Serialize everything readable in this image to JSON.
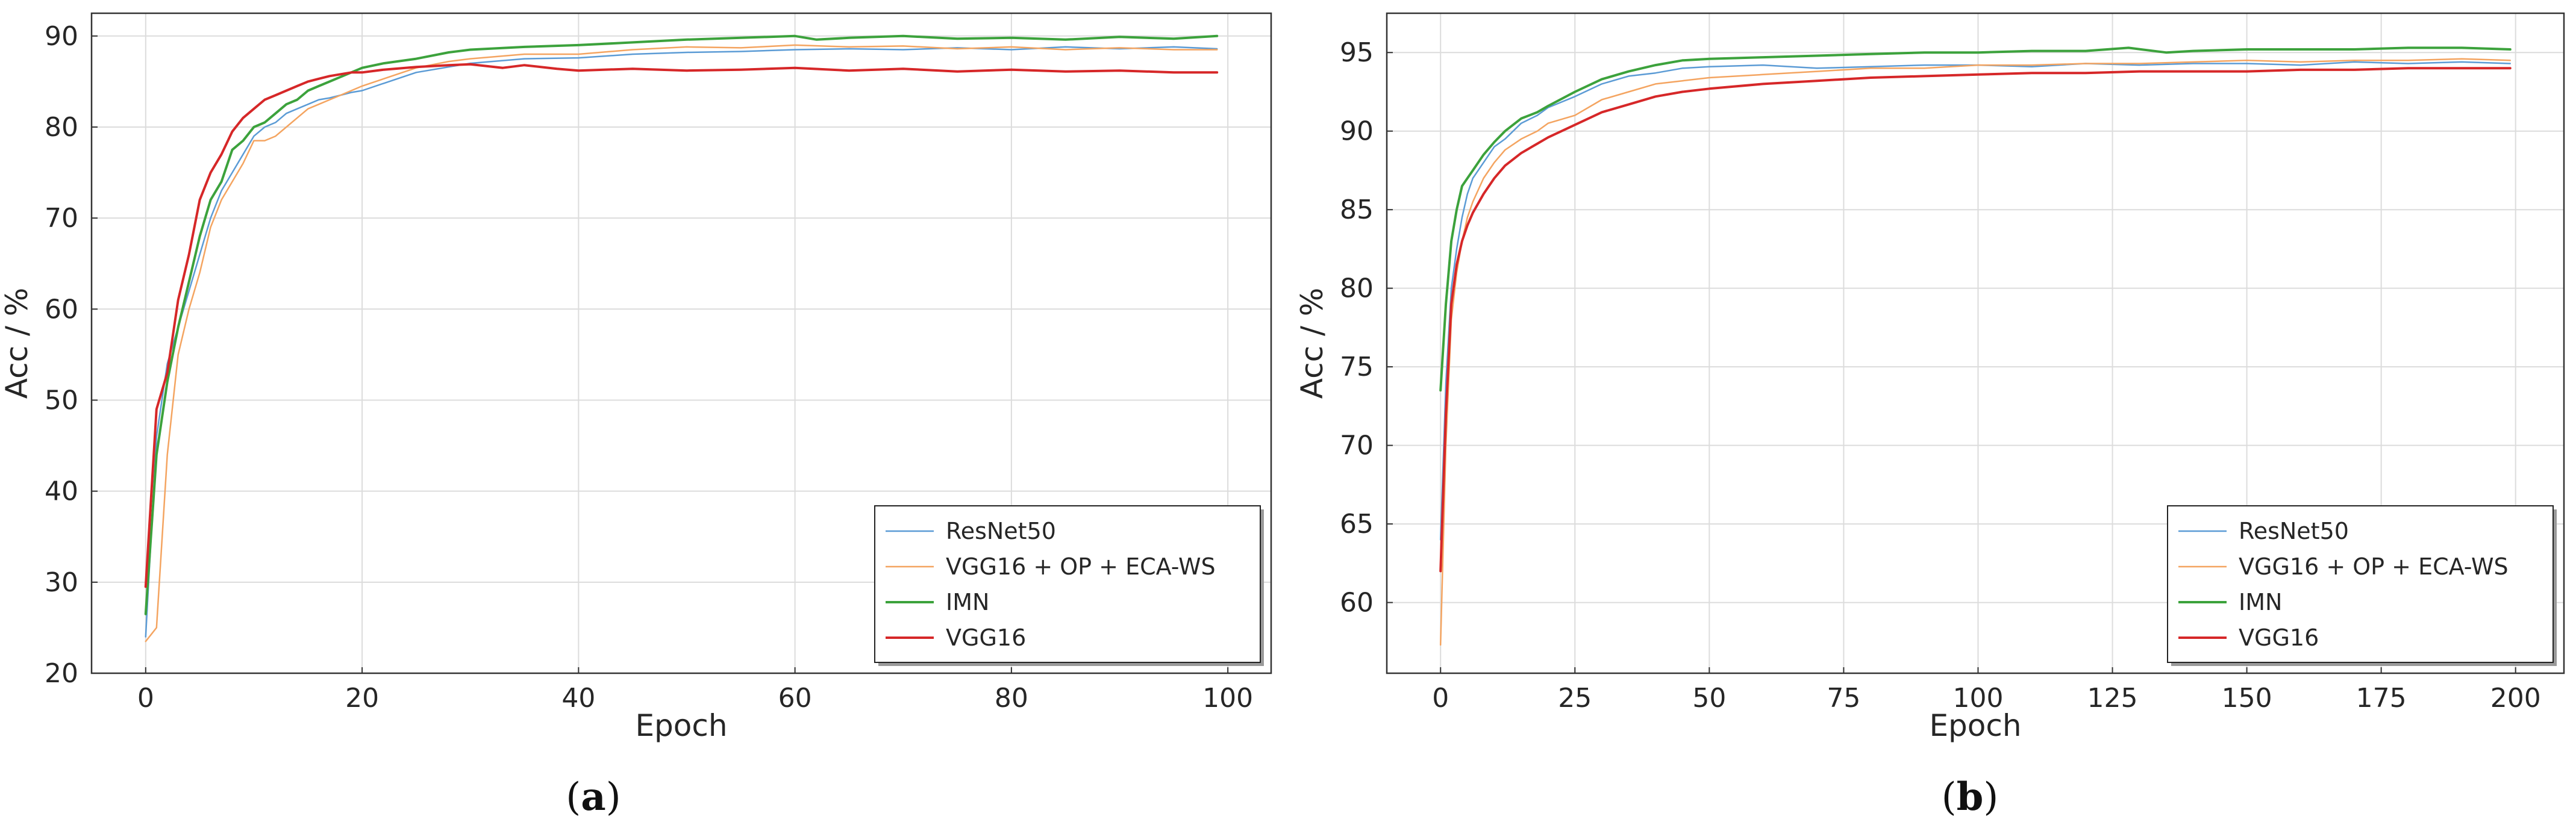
{
  "chart_data": [
    {
      "type": "line",
      "caption_open": "(",
      "caption_letter": "a",
      "caption_close": ")",
      "title": "",
      "xlabel": "Epoch",
      "ylabel": "Acc / %",
      "xlim": [
        -5,
        104
      ],
      "ylim": [
        20,
        92.5
      ],
      "xticks": [
        0,
        20,
        40,
        60,
        80,
        100
      ],
      "yticks": [
        20,
        30,
        40,
        50,
        60,
        70,
        80,
        90
      ],
      "grid": true,
      "legend_position": "lower-right",
      "series": [
        {
          "name": "ResNet50",
          "color": "#5b9bd5",
          "width": 2.5,
          "x": [
            0,
            1,
            2,
            3,
            4,
            5,
            6,
            7,
            8,
            9,
            10,
            11,
            12,
            13,
            14,
            15,
            16,
            17,
            18,
            19,
            20,
            22,
            25,
            28,
            30,
            35,
            40,
            45,
            50,
            55,
            60,
            65,
            70,
            75,
            80,
            85,
            90,
            95,
            99
          ],
          "y": [
            24,
            46,
            54,
            58,
            62,
            66,
            70,
            73,
            75,
            77,
            79,
            80,
            80.5,
            81.5,
            82,
            82.5,
            83,
            83.2,
            83.5,
            83.8,
            84,
            84.8,
            86,
            86.6,
            87,
            87.5,
            87.6,
            88,
            88.2,
            88.3,
            88.5,
            88.6,
            88.5,
            88.7,
            88.5,
            88.8,
            88.6,
            88.8,
            88.6
          ]
        },
        {
          "name": "VGG16 + OP + ECA-WS",
          "color": "#f4a460",
          "width": 2.5,
          "x": [
            0,
            1,
            2,
            3,
            4,
            5,
            6,
            7,
            8,
            9,
            10,
            11,
            12,
            13,
            14,
            15,
            16,
            17,
            18,
            19,
            20,
            22,
            25,
            28,
            30,
            35,
            40,
            45,
            50,
            55,
            60,
            65,
            70,
            75,
            80,
            85,
            90,
            95,
            99
          ],
          "y": [
            23.5,
            25,
            44,
            55,
            60,
            64,
            69,
            72,
            74,
            76,
            78.5,
            78.5,
            79,
            80,
            81,
            82,
            82.5,
            83,
            83.5,
            84,
            84.5,
            85.3,
            86.5,
            87.2,
            87.5,
            88,
            88,
            88.5,
            88.8,
            88.7,
            89,
            88.8,
            88.9,
            88.6,
            88.8,
            88.5,
            88.7,
            88.5,
            88.5
          ]
        },
        {
          "name": "IMN",
          "color": "#3ca23c",
          "width": 4,
          "x": [
            0,
            1,
            2,
            3,
            4,
            5,
            6,
            7,
            8,
            9,
            10,
            11,
            12,
            13,
            14,
            15,
            16,
            17,
            18,
            19,
            20,
            22,
            25,
            28,
            30,
            35,
            40,
            45,
            50,
            55,
            60,
            62,
            65,
            70,
            75,
            80,
            85,
            90,
            95,
            99
          ],
          "y": [
            26.5,
            44,
            52,
            58,
            63,
            68,
            72,
            74,
            77.5,
            78.5,
            80,
            80.5,
            81.5,
            82.5,
            83,
            84,
            84.5,
            85,
            85.5,
            86,
            86.5,
            87,
            87.5,
            88.2,
            88.5,
            88.8,
            89,
            89.3,
            89.6,
            89.8,
            90,
            89.6,
            89.8,
            90,
            89.7,
            89.8,
            89.6,
            89.9,
            89.7,
            90
          ]
        },
        {
          "name": "VGG16",
          "color": "#d62728",
          "width": 4,
          "x": [
            0,
            1,
            2,
            3,
            4,
            5,
            6,
            7,
            8,
            9,
            10,
            11,
            12,
            13,
            14,
            15,
            16,
            17,
            18,
            19,
            20,
            22,
            25,
            28,
            30,
            33,
            35,
            38,
            40,
            45,
            50,
            55,
            60,
            65,
            70,
            75,
            80,
            85,
            90,
            95,
            99
          ],
          "y": [
            29.5,
            49,
            53,
            61,
            66,
            72,
            75,
            77,
            79.5,
            81,
            82,
            83,
            83.5,
            84,
            84.5,
            85,
            85.3,
            85.6,
            85.8,
            86,
            86,
            86.3,
            86.6,
            86.8,
            86.9,
            86.5,
            86.8,
            86.4,
            86.2,
            86.4,
            86.2,
            86.3,
            86.5,
            86.2,
            86.4,
            86.1,
            86.3,
            86.1,
            86.2,
            86,
            86
          ]
        }
      ]
    },
    {
      "type": "line",
      "caption_open": "(",
      "caption_letter": "b",
      "caption_close": ")",
      "title": "",
      "xlabel": "Epoch",
      "ylabel": "Acc / %",
      "xlim": [
        -10,
        209
      ],
      "ylim": [
        55.5,
        97.5
      ],
      "xticks": [
        0,
        25,
        50,
        75,
        100,
        125,
        150,
        175,
        200
      ],
      "yticks": [
        60,
        65,
        70,
        75,
        80,
        85,
        90,
        95
      ],
      "grid": true,
      "legend_position": "lower-right",
      "series": [
        {
          "name": "ResNet50",
          "color": "#5b9bd5",
          "width": 2.5,
          "x": [
            0,
            1,
            2,
            3,
            4,
            5,
            6,
            8,
            10,
            12,
            15,
            18,
            20,
            25,
            30,
            35,
            40,
            45,
            50,
            60,
            70,
            80,
            90,
            100,
            110,
            120,
            130,
            140,
            150,
            160,
            170,
            180,
            190,
            199
          ],
          "y": [
            64,
            74,
            80,
            82.5,
            84.5,
            86,
            87,
            88,
            89,
            89.5,
            90.5,
            91,
            91.5,
            92.2,
            93,
            93.5,
            93.7,
            94,
            94.1,
            94.2,
            94,
            94.1,
            94.2,
            94.2,
            94.1,
            94.3,
            94.2,
            94.3,
            94.3,
            94.2,
            94.4,
            94.3,
            94.4,
            94.3
          ]
        },
        {
          "name": "VGG16 + OP + ECA-WS",
          "color": "#f4a460",
          "width": 2.5,
          "x": [
            0,
            1,
            2,
            3,
            4,
            5,
            6,
            8,
            10,
            12,
            15,
            18,
            20,
            25,
            30,
            35,
            40,
            45,
            50,
            60,
            70,
            80,
            90,
            100,
            110,
            120,
            130,
            140,
            150,
            160,
            170,
            180,
            190,
            199
          ],
          "y": [
            57.3,
            70,
            78,
            81,
            83,
            84.5,
            85.5,
            87,
            88,
            88.8,
            89.5,
            90,
            90.5,
            91,
            92,
            92.5,
            93,
            93.2,
            93.4,
            93.6,
            93.8,
            94,
            94,
            94.2,
            94.2,
            94.3,
            94.3,
            94.4,
            94.5,
            94.4,
            94.5,
            94.5,
            94.6,
            94.5
          ]
        },
        {
          "name": "IMN",
          "color": "#3ca23c",
          "width": 4,
          "x": [
            0,
            1,
            2,
            3,
            4,
            5,
            6,
            8,
            10,
            12,
            15,
            18,
            20,
            25,
            30,
            35,
            40,
            45,
            50,
            60,
            70,
            80,
            90,
            100,
            110,
            120,
            128,
            135,
            140,
            150,
            160,
            170,
            180,
            190,
            199
          ],
          "y": [
            73.5,
            79,
            83,
            85,
            86.5,
            87,
            87.5,
            88.5,
            89.3,
            90,
            90.8,
            91.2,
            91.6,
            92.5,
            93.3,
            93.8,
            94.2,
            94.5,
            94.6,
            94.7,
            94.8,
            94.9,
            95,
            95,
            95.1,
            95.1,
            95.3,
            95,
            95.1,
            95.2,
            95.2,
            95.2,
            95.3,
            95.3,
            95.2
          ]
        },
        {
          "name": "VGG16",
          "color": "#d62728",
          "width": 4,
          "x": [
            0,
            1,
            2,
            3,
            4,
            5,
            6,
            8,
            10,
            12,
            15,
            18,
            20,
            25,
            30,
            35,
            40,
            45,
            50,
            60,
            70,
            80,
            90,
            100,
            110,
            120,
            130,
            140,
            150,
            160,
            170,
            180,
            190,
            199
          ],
          "y": [
            62,
            72,
            79,
            81.5,
            83,
            84,
            84.8,
            86,
            87,
            87.8,
            88.6,
            89.2,
            89.6,
            90.4,
            91.2,
            91.7,
            92.2,
            92.5,
            92.7,
            93,
            93.2,
            93.4,
            93.5,
            93.6,
            93.7,
            93.7,
            93.8,
            93.8,
            93.8,
            93.9,
            93.9,
            94,
            94,
            94
          ]
        }
      ]
    }
  ]
}
